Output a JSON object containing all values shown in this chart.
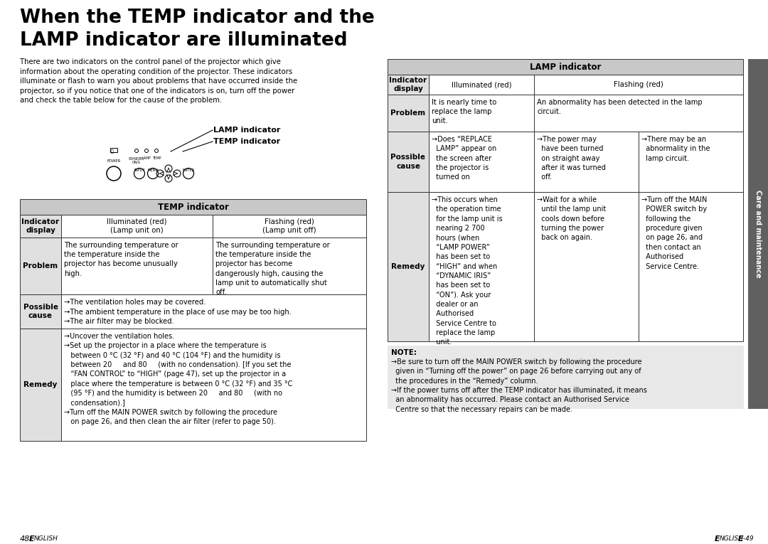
{
  "bg_color": "#ffffff",
  "title_line1": "When the TEMP indicator and the",
  "title_line2": "LAMP indicator are illuminated",
  "intro_text": "There are two indicators on the control panel of the projector which give\ninformation about the operating condition of the projector. These indicators\nilluminate or flash to warn you about problems that have occurred inside the\nprojector, so if you notice that one of the indicators is on, turn off the power\nand check the table below for the cause of the problem.",
  "lamp_indicator_label": "LAMP indicator",
  "temp_indicator_label": "TEMP indicator",
  "page_left": "48-",
  "page_left_small": "ENGLISH",
  "page_right": "ENGLISH",
  "page_right_small": "-49",
  "sidebar_text": "Care and maintenance",
  "temp_table": {
    "header": "TEMP indicator",
    "col1_header": "Indicator\ndisplay",
    "col2_header": "Illuminated (red)\n(Lamp unit on)",
    "col3_header": "Flashing (red)\n(Lamp unit off)",
    "row1_label": "Problem",
    "row1_col2": "The surrounding temperature or\nthe temperature inside the\nprojector has become unusually\nhigh.",
    "row1_col3": "The surrounding temperature or\nthe temperature inside the\nprojector has become\ndangerously high, causing the\nlamp unit to automatically shut\noff.",
    "row2_label": "Possible\ncause",
    "row2_content": "→The ventilation holes may be covered.\n→The ambient temperature in the place of use may be too high.\n→The air filter may be blocked.",
    "row3_label": "Remedy",
    "row3_content": "→Uncover the ventilation holes.\n→Set up the projector in a place where the temperature is\n   between 0 °C (32 °F) and 40 °C (104 °F) and the humidity is\n   between 20     and 80     (with no condensation). [If you set the\n   “FAN CONTROL” to “HIGH” (page 47), set up the projector in a\n   place where the temperature is between 0 °C (32 °F) and 35 °C\n   (95 °F) and the humidity is between 20     and 80     (with no\n   condensation).]\n→Turn off the MAIN POWER switch by following the procedure\n   on page 26, and then clean the air filter (refer to page 50)."
  },
  "lamp_table": {
    "header": "LAMP indicator",
    "col1_header": "Indicator\ndisplay",
    "col2_header": "Illuminated (red)",
    "col3_header": "Flashing (red)",
    "row1_label": "Problem",
    "row1_col2": "It is nearly time to\nreplace the lamp\nunit.",
    "row1_col3": "An abnormality has been detected in the lamp\ncircuit.",
    "row2_label": "Possible\ncause",
    "row2_col2": "→Does “REPLACE\n  LAMP” appear on\n  the screen after\n  the projector is\n  turned on",
    "row2_col3a": "→The power may\n  have been turned\n  on straight away\n  after it was turned\n  off.",
    "row2_col3b": "→There may be an\n  abnormality in the\n  lamp circuit.",
    "row3_label": "Remedy",
    "row3_col2": "→This occurs when\n  the operation time\n  for the lamp unit is\n  nearing 2 700\n  hours (when\n  “LAMP POWER”\n  has been set to\n  “HIGH” and when\n  “DYNAMIC IRIS”\n  has been set to\n  “ON”). Ask your\n  dealer or an\n  Authorised\n  Service Centre to\n  replace the lamp\n  unit.",
    "row3_col3a": "→Wait for a while\n  until the lamp unit\n  cools down before\n  turning the power\n  back on again.",
    "row3_col3b": "→Turn off the MAIN\n  POWER switch by\n  following the\n  procedure given\n  on page 26, and\n  then contact an\n  Authorised\n  Service Centre."
  },
  "note_bold": "NOTE:",
  "note_text": "→Be sure to turn off the MAIN POWER switch by following the procedure\n  given in “Turning off the power” on page 26 before carrying out any of\n  the procedures in the “Remedy” column.\n→If the power turns off after the TEMP indicator has illuminated, it means\n  an abnormality has occurred. Please contact an Authorised Service\n  Centre so that the necessary repairs can be made."
}
